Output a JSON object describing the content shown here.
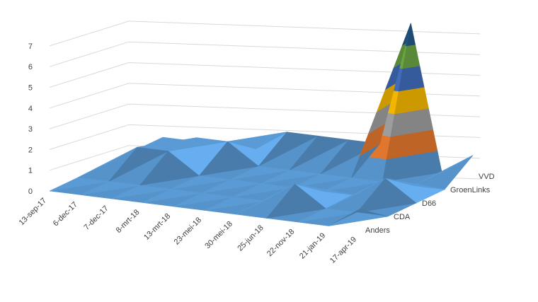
{
  "chart_data": {
    "type": "surface-3d",
    "title": "",
    "xlabel": "",
    "ylabel": "",
    "zlim": [
      0,
      7
    ],
    "z_ticks": [
      "0",
      "1",
      "2",
      "3",
      "4",
      "5",
      "6",
      "7"
    ],
    "x_categories": [
      "13-sep-17",
      "6-dec-17",
      "7-dec-17",
      "8-mrt-18",
      "13-mrt-18",
      "23-mei-18",
      "30-mei-18",
      "25-jun-18",
      "22-nov-18",
      "21-jan-19",
      "17-apr-19"
    ],
    "series": [
      {
        "name": "Anders",
        "values": [
          0,
          0,
          0,
          0,
          0,
          0,
          0,
          0,
          0,
          0,
          1
        ]
      },
      {
        "name": "CDA",
        "values": [
          0,
          0,
          0,
          0,
          0,
          0,
          0,
          1,
          0,
          0,
          0
        ]
      },
      {
        "name": "D66",
        "values": [
          0,
          1,
          1,
          0,
          0,
          0,
          0,
          0,
          0,
          1,
          0
        ]
      },
      {
        "name": "GroenLinks",
        "values": [
          0,
          0,
          1,
          1,
          0,
          0,
          0,
          0,
          0,
          0,
          0
        ]
      },
      {
        "name": "VVD",
        "values": [
          0,
          0,
          0,
          0,
          1,
          1,
          1,
          1,
          7,
          0,
          1
        ]
      }
    ],
    "band_colors": [
      "#5b9bd5",
      "#ed7d31",
      "#a5a5a5",
      "#ffc000",
      "#4472c4",
      "#70ad47",
      "#255e91"
    ],
    "gridlines": true,
    "legend": "none"
  }
}
